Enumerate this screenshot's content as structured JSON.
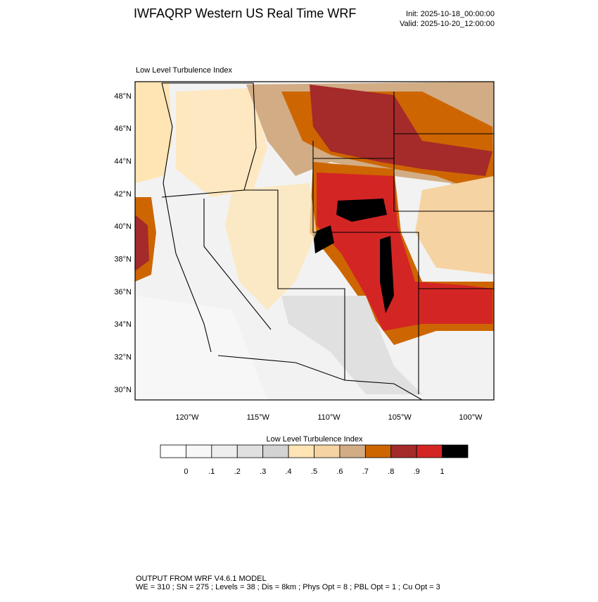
{
  "header": {
    "title": "IWFAQRP Western US Real Time WRF",
    "init": "Init: 2025-10-18_00:00:00",
    "valid": "Valid: 2025-10-20_12:00:00"
  },
  "map": {
    "title": "Low Level Turbulence Index",
    "lat_labels": [
      "48°N",
      "46°N",
      "44°N",
      "42°N",
      "40°N",
      "38°N",
      "36°N",
      "34°N",
      "32°N",
      "30°N"
    ],
    "lon_labels": [
      "120°W",
      "115°W",
      "110°W",
      "105°W",
      "100°W"
    ]
  },
  "colorbar": {
    "title": "Low Level Turbulence Index",
    "colors": [
      "#ffffff",
      "#f7f7f7",
      "#eeeeee",
      "#e0e0e0",
      "#d3d3d3",
      "#ffe5b4",
      "#f6d3a2",
      "#d2ac84",
      "#cd6600",
      "#a52a2a",
      "#d42525",
      "#000000"
    ],
    "labels": [
      "0",
      ".1",
      ".2",
      ".3",
      ".4",
      ".5",
      ".6",
      ".7",
      ".8",
      ".9",
      "1"
    ]
  },
  "footer": {
    "line1": "OUTPUT FROM WRF V4.6.1 MODEL",
    "line2": "WE = 310 ; SN = 275 ; Levels = 38 ; Dis = 8km ; Phys Opt = 8 ; PBL Opt = 1 ; Cu Opt = 3"
  }
}
